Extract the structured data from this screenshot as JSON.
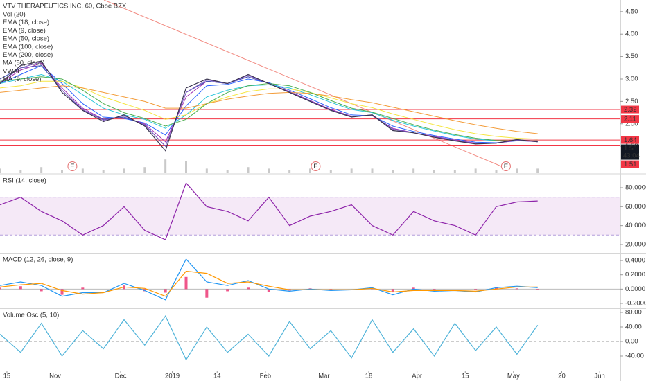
{
  "x_axis": {
    "xlim": [
      0,
      90
    ],
    "xticks": [
      {
        "value": 1,
        "label": "15"
      },
      {
        "value": 8,
        "label": "Nov"
      },
      {
        "value": 17.5,
        "label": "Dec"
      },
      {
        "value": 25,
        "label": "2019"
      },
      {
        "value": 31.5,
        "label": "14"
      },
      {
        "value": 38.5,
        "label": "Feb"
      },
      {
        "value": 47,
        "label": "Mar"
      },
      {
        "value": 53.5,
        "label": "18"
      },
      {
        "value": 60.5,
        "label": "Apr"
      },
      {
        "value": 67.5,
        "label": "15"
      },
      {
        "value": 74.5,
        "label": "May"
      },
      {
        "value": 81.5,
        "label": "20"
      },
      {
        "value": 87,
        "label": "Jun"
      }
    ]
  },
  "chart_data": [
    {
      "type": "line",
      "title": "VTV THERAPEUTICS INC, 60, Cboe BZX",
      "ylim": [
        0.9,
        4.76
      ],
      "yticks": [
        {
          "value": 4.5,
          "label": "4.50"
        },
        {
          "value": 4,
          "label": "4.00"
        },
        {
          "value": 3.5,
          "label": "3.50"
        },
        {
          "value": 3,
          "label": "3.00"
        },
        {
          "value": 2.5,
          "label": "2.50"
        },
        {
          "value": 2,
          "label": "2.00"
        },
        {
          "value": 1.5,
          "label": "1.50"
        }
      ],
      "x": [
        0,
        3,
        6,
        9,
        12,
        15,
        18,
        21,
        24,
        27,
        30,
        33,
        36,
        39,
        42,
        45,
        48,
        51,
        54,
        57,
        60,
        63,
        66,
        69,
        72,
        75,
        78
      ],
      "close": {
        "color": "#3a3550",
        "values": [
          2.9,
          3.3,
          3.4,
          2.7,
          2.3,
          2.05,
          2.2,
          1.95,
          1.4,
          2.8,
          3.0,
          2.9,
          3.1,
          2.9,
          2.7,
          2.5,
          2.3,
          2.15,
          2.2,
          1.85,
          1.8,
          1.7,
          1.62,
          1.55,
          1.57,
          1.65,
          1.6
        ]
      },
      "volume": {
        "name": "Vol (20)",
        "color": "#c9c9c9",
        "values": [
          3,
          2,
          4,
          2,
          3,
          2,
          3,
          4,
          9,
          8,
          3,
          2,
          4,
          3,
          2,
          3,
          2,
          3,
          3,
          2,
          3,
          2,
          2,
          3,
          2,
          3,
          3
        ]
      },
      "series": [
        {
          "name": "EMA (18, close)",
          "color": "#2962ff",
          "values": [
            2.9,
            3.1,
            3.3,
            2.9,
            2.45,
            2.15,
            2.12,
            2.02,
            1.75,
            2.4,
            2.85,
            2.88,
            3.0,
            2.92,
            2.75,
            2.56,
            2.36,
            2.2,
            2.18,
            1.95,
            1.83,
            1.74,
            1.66,
            1.59,
            1.58,
            1.62,
            1.61
          ]
        },
        {
          "name": "EMA (9, close)",
          "color": "#9c27b0",
          "values": [
            2.9,
            3.2,
            3.35,
            2.8,
            2.35,
            2.1,
            2.15,
            2.0,
            1.6,
            2.6,
            2.95,
            2.9,
            3.05,
            2.9,
            2.72,
            2.52,
            2.32,
            2.17,
            2.18,
            1.9,
            1.8,
            1.72,
            1.64,
            1.57,
            1.57,
            1.63,
            1.6
          ]
        },
        {
          "name": "EMA (50, close)",
          "color": "#26c6da",
          "values": [
            2.9,
            3.0,
            3.1,
            2.95,
            2.65,
            2.35,
            2.2,
            2.1,
            1.9,
            2.2,
            2.6,
            2.75,
            2.85,
            2.87,
            2.8,
            2.65,
            2.48,
            2.32,
            2.25,
            2.08,
            1.95,
            1.84,
            1.74,
            1.66,
            1.62,
            1.62,
            1.62
          ]
        },
        {
          "name": "EMA (100, close)",
          "color": "#f5e642",
          "values": [
            2.8,
            2.85,
            2.95,
            2.95,
            2.8,
            2.6,
            2.45,
            2.3,
            2.1,
            2.2,
            2.45,
            2.6,
            2.72,
            2.78,
            2.78,
            2.7,
            2.58,
            2.45,
            2.36,
            2.22,
            2.1,
            1.98,
            1.87,
            1.78,
            1.72,
            1.68,
            1.66
          ]
        },
        {
          "name": "EMA (200, close)",
          "color": "#f39c39",
          "values": [
            2.7,
            2.75,
            2.8,
            2.85,
            2.8,
            2.7,
            2.6,
            2.5,
            2.35,
            2.35,
            2.45,
            2.55,
            2.62,
            2.68,
            2.7,
            2.68,
            2.62,
            2.54,
            2.47,
            2.37,
            2.27,
            2.17,
            2.07,
            1.98,
            1.9,
            1.83,
            1.78
          ]
        },
        {
          "name": "MA (50, close)",
          "color": "#4caf50",
          "values": [
            2.95,
            3.0,
            3.05,
            3.0,
            2.75,
            2.45,
            2.25,
            2.12,
            1.95,
            2.1,
            2.45,
            2.7,
            2.85,
            2.9,
            2.85,
            2.7,
            2.52,
            2.35,
            2.26,
            2.12,
            1.98,
            1.86,
            1.76,
            1.68,
            1.63,
            1.62,
            1.62
          ]
        },
        {
          "name": "VWAP",
          "color": "#3f51b5",
          "values": [
            3.0,
            3.25,
            3.3,
            2.75,
            2.3,
            2.1,
            2.15,
            1.98,
            1.5,
            2.7,
            2.95,
            2.9,
            3.05,
            2.9,
            2.7,
            2.5,
            2.3,
            2.16,
            2.2,
            1.88,
            1.8,
            1.71,
            1.63,
            1.56,
            1.57,
            1.64,
            1.61
          ]
        },
        {
          "name": "MA (9, close)",
          "color": "#7e57c2",
          "values": [
            2.92,
            3.25,
            3.38,
            2.75,
            2.32,
            2.08,
            2.18,
            1.97,
            1.5,
            2.7,
            2.98,
            2.9,
            3.08,
            2.9,
            2.71,
            2.51,
            2.31,
            2.16,
            2.19,
            1.88,
            1.8,
            1.71,
            1.63,
            1.56,
            1.57,
            1.64,
            1.6
          ]
        }
      ],
      "levels": [
        2.32,
        2.11,
        1.64,
        1.51
      ],
      "level_color": "#f23645",
      "last_price": {
        "value": 1.58,
        "countdown": "43:04",
        "color": "#131722"
      },
      "earnings": [
        {
          "x": 10.5,
          "label": "E"
        },
        {
          "x": 45.8,
          "label": "E"
        },
        {
          "x": 73.4,
          "label": "E"
        }
      ]
    },
    {
      "type": "line",
      "title": "RSI (14, close)",
      "ylim": [
        11.2,
        93.9
      ],
      "yticks": [
        {
          "value": 80,
          "label": "80.0000"
        },
        {
          "value": 60,
          "label": "60.0000"
        },
        {
          "value": 40,
          "label": "40.0000"
        },
        {
          "value": 20,
          "label": "20.0000"
        }
      ],
      "band": [
        30,
        70
      ],
      "band_color": "#9c27b0",
      "x": [
        0,
        3,
        6,
        9,
        12,
        15,
        18,
        21,
        24,
        27,
        30,
        33,
        36,
        39,
        42,
        45,
        48,
        51,
        54,
        57,
        60,
        63,
        66,
        69,
        72,
        75,
        78
      ],
      "close": {
        "color": "#8e24aa",
        "values": [
          62,
          70,
          55,
          45,
          30,
          40,
          60,
          35,
          25,
          85,
          60,
          55,
          45,
          70,
          40,
          50,
          55,
          62,
          40,
          30,
          55,
          45,
          40,
          30,
          60,
          65,
          66
        ]
      }
    },
    {
      "type": "macd",
      "title": "MACD (12, 26, close, 9)",
      "ylim": [
        -0.268,
        0.4976
      ],
      "yticks": [
        {
          "value": 0.4,
          "label": "0.4000"
        },
        {
          "value": 0.2,
          "label": "0.2000"
        },
        {
          "value": 0,
          "label": "0.0000"
        },
        {
          "value": -0.2,
          "label": "-0.2000"
        }
      ],
      "baseline": 0,
      "x": [
        0,
        3,
        6,
        9,
        12,
        15,
        18,
        21,
        24,
        27,
        30,
        33,
        36,
        39,
        42,
        45,
        48,
        51,
        54,
        57,
        60,
        63,
        66,
        69,
        72,
        75,
        78
      ],
      "macd": {
        "color": "#2196f3",
        "values": [
          0.05,
          0.1,
          0.05,
          -0.1,
          -0.05,
          -0.05,
          0.08,
          -0.02,
          -0.15,
          0.42,
          0.1,
          0.05,
          0.12,
          0.0,
          -0.03,
          0.0,
          -0.02,
          -0.01,
          0.02,
          -0.08,
          0.0,
          -0.03,
          -0.02,
          -0.04,
          0.02,
          0.04,
          0.02
        ]
      },
      "signal": {
        "color": "#ff9800",
        "values": [
          0.03,
          0.06,
          0.08,
          -0.02,
          -0.07,
          -0.05,
          0.03,
          0.01,
          -0.1,
          0.25,
          0.22,
          0.08,
          0.1,
          0.04,
          -0.01,
          -0.01,
          -0.01,
          -0.01,
          0.01,
          -0.04,
          -0.02,
          -0.02,
          -0.02,
          -0.03,
          0.0,
          0.03,
          0.03
        ]
      },
      "histogram": {
        "color": "#e91e63",
        "values": [
          0.02,
          0.04,
          -0.03,
          -0.08,
          0.02,
          0,
          0.05,
          -0.03,
          -0.05,
          0.17,
          -0.12,
          -0.03,
          0.02,
          -0.04,
          -0.02,
          0.01,
          -0.01,
          0,
          0.01,
          -0.04,
          0.02,
          -0.01,
          0,
          -0.01,
          0.02,
          0.01,
          -0.01
        ]
      }
    },
    {
      "type": "line",
      "title": "Volume Osc (5, 10)",
      "ylim": [
        -80,
        89.5
      ],
      "yticks": [
        {
          "value": 80,
          "label": "80.00"
        },
        {
          "value": 40,
          "label": "40.00"
        },
        {
          "value": 0,
          "label": "0.00"
        },
        {
          "value": -40,
          "label": "-40.00"
        }
      ],
      "baseline": 0,
      "x": [
        0,
        3,
        6,
        9,
        12,
        15,
        18,
        21,
        24,
        27,
        30,
        33,
        36,
        39,
        42,
        45,
        48,
        51,
        54,
        57,
        60,
        63,
        66,
        69,
        72,
        75,
        78
      ],
      "close": {
        "color": "#4fb3d9",
        "values": [
          20,
          -30,
          50,
          -40,
          30,
          -20,
          60,
          -10,
          70,
          -50,
          40,
          -30,
          20,
          -40,
          55,
          -20,
          30,
          -45,
          60,
          -30,
          35,
          -40,
          50,
          -25,
          40,
          -35,
          45
        ]
      }
    }
  ]
}
